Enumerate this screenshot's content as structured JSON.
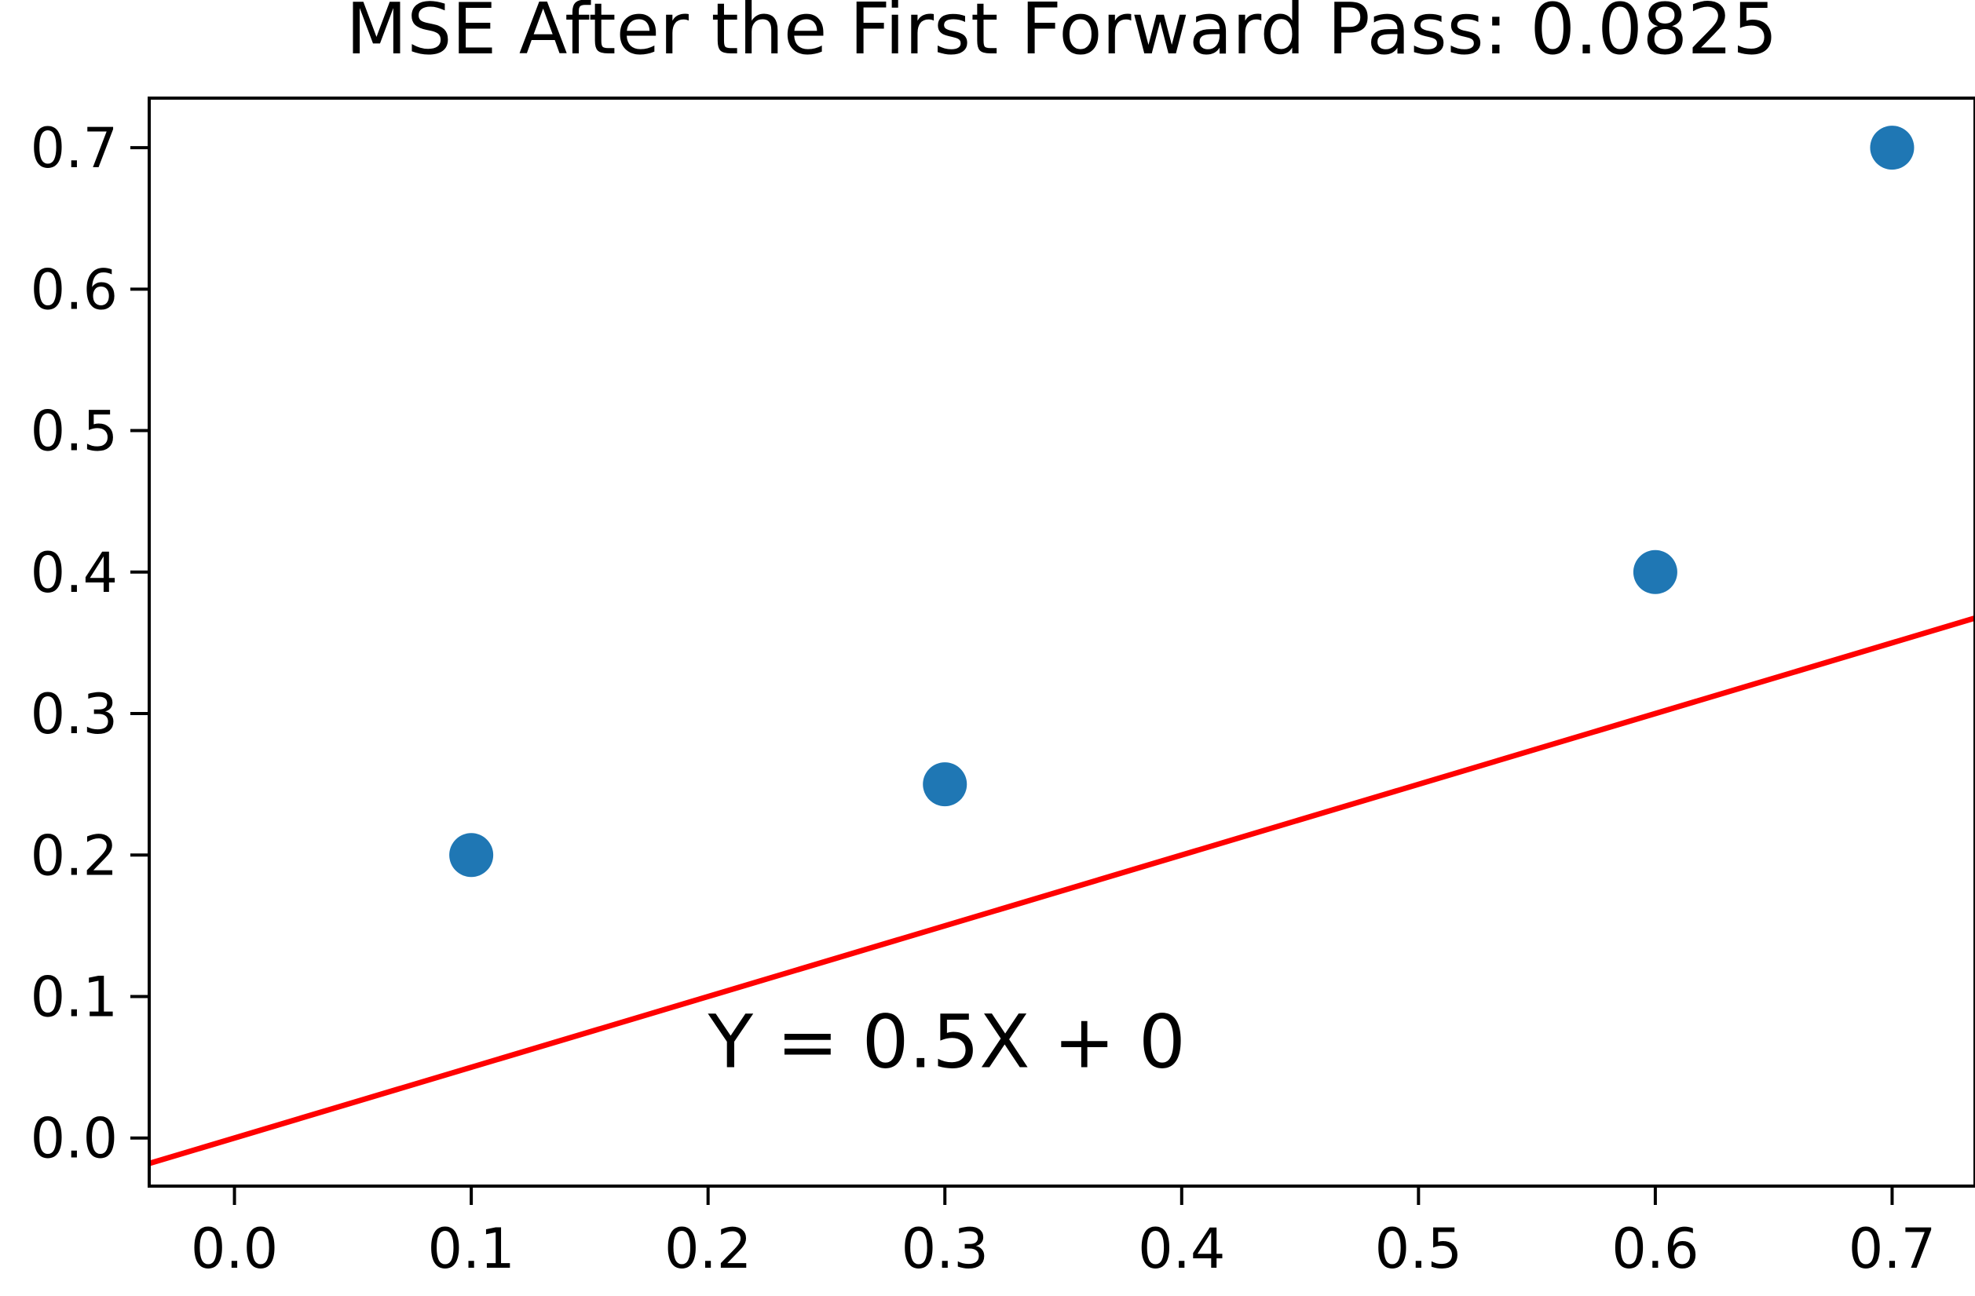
{
  "chart_data": {
    "type": "scatter",
    "title": "MSE After the First Forward Pass: 0.0825",
    "xlabel": "",
    "ylabel": "",
    "xlim": [
      -0.036,
      0.735
    ],
    "ylim": [
      -0.034,
      0.735
    ],
    "x_ticks": [
      "0.0",
      "0.1",
      "0.2",
      "0.3",
      "0.4",
      "0.5",
      "0.6",
      "0.7"
    ],
    "y_ticks": [
      "0.0",
      "0.1",
      "0.2",
      "0.3",
      "0.4",
      "0.5",
      "0.6",
      "0.7"
    ],
    "grid": false,
    "series": [
      {
        "kind": "scatter",
        "color": "#1f77b4",
        "points": [
          {
            "x": 0.1,
            "y": 0.2
          },
          {
            "x": 0.3,
            "y": 0.25
          },
          {
            "x": 0.6,
            "y": 0.4
          },
          {
            "x": 0.7,
            "y": 0.7
          }
        ]
      },
      {
        "kind": "line",
        "color": "#ff0000",
        "slope": 0.5,
        "intercept": 0
      }
    ],
    "annotations": [
      {
        "text": "Y = 0.5X + 0",
        "x": 0.2,
        "y": 0.05
      }
    ]
  }
}
